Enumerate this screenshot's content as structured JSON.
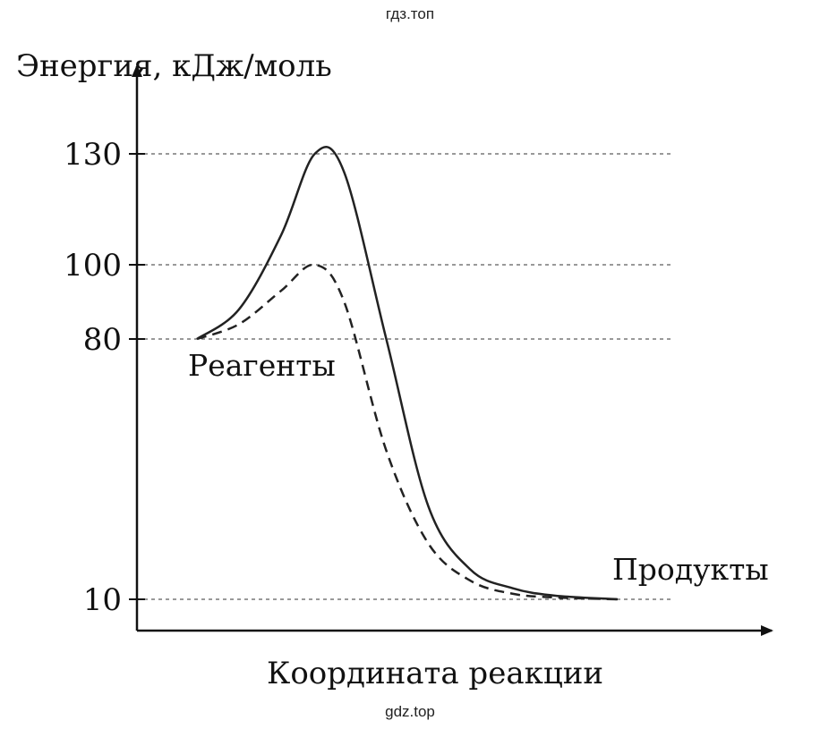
{
  "watermarks": {
    "top": "гдз.топ",
    "bottom": "gdz.top"
  },
  "chart_data": {
    "type": "line",
    "ylabel": "Энергия, кДж/моль",
    "xlabel": "Координата реакции",
    "yticks": [
      130,
      100,
      80,
      10
    ],
    "annotations": {
      "reagents": "Реагенты",
      "products": "Продукты"
    },
    "series": [
      {
        "style": "solid",
        "color": "#222222",
        "x": [
          0,
          0.1,
          0.2,
          0.28,
          0.35,
          0.45,
          0.55,
          0.65,
          0.75,
          0.85,
          1.0
        ],
        "y": [
          80,
          88,
          108,
          130,
          125,
          80,
          35,
          18,
          13,
          11,
          10
        ]
      },
      {
        "style": "dashed",
        "color": "#222222",
        "x": [
          0,
          0.1,
          0.2,
          0.28,
          0.35,
          0.45,
          0.55,
          0.65,
          0.75,
          0.85,
          1.0
        ],
        "y": [
          80,
          84,
          93,
          100,
          90,
          50,
          25,
          15,
          11.5,
          10.5,
          10
        ]
      }
    ],
    "grid": "dashed reference lines at y tick values"
  }
}
